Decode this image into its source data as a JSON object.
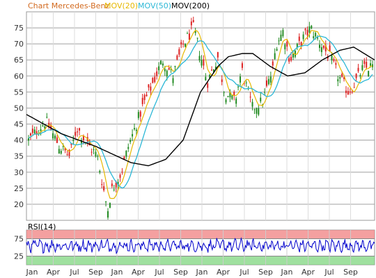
{
  "chart_data": [
    {
      "type": "candlestick",
      "title": "Chart Mercedes-Benz",
      "legend": [
        {
          "label": "Chart Mercedes-Benz",
          "color": "#d2691e"
        },
        {
          "label": "MOV(20)",
          "color": "#e6b800"
        },
        {
          "label": "MOV(50)",
          "color": "#2bb7d6"
        },
        {
          "label": "MOV(200)",
          "color": "#000000"
        }
      ],
      "legend_position": "top-left",
      "ylim": [
        15,
        80
      ],
      "y_ticks": [
        "20",
        "25",
        "30",
        "35",
        "40",
        "45",
        "50",
        "55",
        "60",
        "65",
        "70",
        "75"
      ],
      "x_ticks": [
        "Jan",
        "Apr",
        "Jul",
        "Sep",
        "Jan",
        "Apr",
        "Jul",
        "Sep",
        "Jan",
        "Apr",
        "Jul",
        "Sep",
        "Jan",
        "Apr",
        "Jul",
        "Sep"
      ],
      "grid": true,
      "price_path": {
        "x": [
          0,
          0.05,
          0.09,
          0.12,
          0.14,
          0.17,
          0.2,
          0.23,
          0.24,
          0.27,
          0.29,
          0.33,
          0.39,
          0.42,
          0.45,
          0.48,
          0.52,
          0.55,
          0.57,
          0.6,
          0.62,
          0.65,
          0.68,
          0.71,
          0.72,
          0.74,
          0.76,
          0.8,
          0.82,
          0.85,
          0.88,
          0.9,
          0.93,
          0.95,
          0.97,
          1
        ],
        "y": [
          40,
          46,
          38,
          35,
          44,
          39,
          35,
          18,
          24,
          30,
          38,
          50,
          65,
          60,
          70,
          75,
          58,
          66,
          55,
          52,
          62,
          50,
          52,
          62,
          70,
          74,
          65,
          72,
          75,
          70,
          65,
          60,
          55,
          58,
          62,
          63
        ]
      },
      "mov200_path": {
        "x": [
          0,
          0.1,
          0.2,
          0.3,
          0.35,
          0.4,
          0.45,
          0.5,
          0.55,
          0.58,
          0.62,
          0.65,
          0.7,
          0.75,
          0.8,
          0.85,
          0.9,
          0.94,
          0.97,
          1
        ],
        "y": [
          48,
          42,
          38,
          33,
          32,
          34,
          40,
          55,
          63,
          66,
          67,
          67,
          63,
          60,
          61,
          65,
          68,
          69,
          67,
          65
        ]
      }
    },
    {
      "type": "line",
      "title": "RSI(14)",
      "y_ticks": [
        "75",
        "25"
      ],
      "bands": [
        {
          "label": "overbought",
          "from": 75,
          "to": 100,
          "color": "#f08080"
        },
        {
          "label": "oversold",
          "from": 0,
          "to": 25,
          "color": "#7fd67f"
        }
      ],
      "x_ticks": [
        "Jan",
        "Apr",
        "Jul",
        "Sep",
        "Jan",
        "Apr",
        "Jul",
        "Sep",
        "Jan",
        "Apr",
        "Jul",
        "Sep",
        "Jan",
        "Apr",
        "Jul",
        "Sep"
      ],
      "series_color": "#0000cc"
    }
  ]
}
